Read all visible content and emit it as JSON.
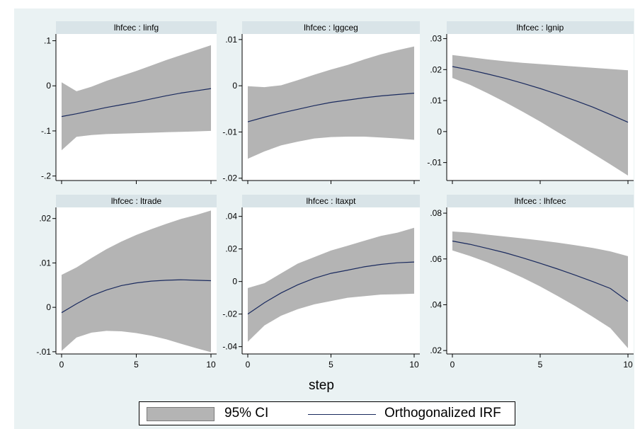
{
  "chart": {
    "xlabel": "step",
    "legend": [
      {
        "label": "95% CI"
      },
      {
        "label": "Orthogonalized IRF"
      }
    ]
  },
  "colors": {
    "ci_fill": "#b4b4b4",
    "irf_line": "#1a2a5e",
    "panel_title_bg": "#d9e4e8",
    "outer_background": "#eaf2f3",
    "plot_background": "#ffffff"
  },
  "chart_data": [
    {
      "type": "line",
      "title": "lhfcec : linfg",
      "xlabel": "step",
      "x": [
        0,
        1,
        2,
        3,
        4,
        5,
        6,
        7,
        8,
        9,
        10
      ],
      "xticks": [
        0,
        5,
        10
      ],
      "ylim": [
        -0.21,
        0.115
      ],
      "yticks": [
        ".1",
        "0",
        "-.1",
        "-.2"
      ],
      "ytick_values": [
        0.1,
        0,
        -0.1,
        -0.2
      ],
      "series": [
        {
          "name": "Orthogonalized IRF",
          "values": [
            -0.068,
            -0.062,
            -0.055,
            -0.048,
            -0.042,
            -0.036,
            -0.029,
            -0.022,
            -0.016,
            -0.011,
            -0.006
          ]
        },
        {
          "name": "95% CI lower",
          "values": [
            -0.143,
            -0.113,
            -0.109,
            -0.107,
            -0.106,
            -0.105,
            -0.104,
            -0.103,
            -0.102,
            -0.101,
            -0.1
          ]
        },
        {
          "name": "95% CI upper",
          "values": [
            0.008,
            -0.012,
            -0.002,
            0.011,
            0.022,
            0.033,
            0.045,
            0.057,
            0.068,
            0.079,
            0.09
          ]
        }
      ]
    },
    {
      "type": "line",
      "title": "lhfcec : lggceg",
      "xlabel": "step",
      "x": [
        0,
        1,
        2,
        3,
        4,
        5,
        6,
        7,
        8,
        9,
        10
      ],
      "xticks": [
        0,
        5,
        10
      ],
      "ylim": [
        -0.0205,
        0.0112
      ],
      "yticks": [
        ".01",
        "0",
        "-.01",
        "-.02"
      ],
      "ytick_values": [
        0.01,
        0,
        -0.01,
        -0.02
      ],
      "series": [
        {
          "name": "Orthogonalized IRF",
          "values": [
            -0.0078,
            -0.0068,
            -0.0059,
            -0.0051,
            -0.0043,
            -0.0036,
            -0.0031,
            -0.0026,
            -0.0022,
            -0.0019,
            -0.0016
          ]
        },
        {
          "name": "95% CI lower",
          "values": [
            -0.0158,
            -0.0142,
            -0.0129,
            -0.0121,
            -0.0114,
            -0.0111,
            -0.011,
            -0.011,
            -0.0112,
            -0.0114,
            -0.0117
          ]
        },
        {
          "name": "95% CI upper",
          "values": [
            -0.0001,
            -0.0003,
            0.0001,
            0.0012,
            0.0024,
            0.0035,
            0.0045,
            0.0057,
            0.0068,
            0.0077,
            0.0085
          ]
        }
      ]
    },
    {
      "type": "line",
      "title": "lhfcec : lgnip",
      "xlabel": "step",
      "x": [
        0,
        1,
        2,
        3,
        4,
        5,
        6,
        7,
        8,
        9,
        10
      ],
      "xticks": [
        0,
        5,
        10
      ],
      "ylim": [
        -0.0158,
        0.0315
      ],
      "yticks": [
        ".03",
        ".02",
        ".01",
        "0",
        "-.01"
      ],
      "ytick_values": [
        0.03,
        0.02,
        0.01,
        0,
        -0.01
      ],
      "series": [
        {
          "name": "Orthogonalized IRF",
          "values": [
            0.021,
            0.0199,
            0.0186,
            0.0172,
            0.0156,
            0.0139,
            0.012,
            0.01,
            0.0079,
            0.0055,
            0.003
          ]
        },
        {
          "name": "95% CI lower",
          "values": [
            0.0173,
            0.0151,
            0.0124,
            0.0095,
            0.0064,
            0.0032,
            -0.0002,
            -0.0036,
            -0.0071,
            -0.0106,
            -0.0142
          ]
        },
        {
          "name": "95% CI upper",
          "values": [
            0.0247,
            0.024,
            0.0233,
            0.0227,
            0.0222,
            0.0218,
            0.0214,
            0.021,
            0.0206,
            0.0202,
            0.0198
          ]
        }
      ]
    },
    {
      "type": "line",
      "title": "lhfcec : ltrade",
      "xlabel": "step",
      "x": [
        0,
        1,
        2,
        3,
        4,
        5,
        6,
        7,
        8,
        9,
        10
      ],
      "xticks": [
        0,
        5,
        10
      ],
      "ylim": [
        -0.0105,
        0.0225
      ],
      "yticks": [
        ".02",
        ".01",
        "0",
        "-.01"
      ],
      "ytick_values": [
        0.02,
        0.01,
        0,
        -0.01
      ],
      "series": [
        {
          "name": "Orthogonalized IRF",
          "values": [
            -0.0012,
            0.0008,
            0.0026,
            0.0039,
            0.0049,
            0.0055,
            0.0059,
            0.0061,
            0.0062,
            0.0061,
            0.006
          ]
        },
        {
          "name": "95% CI lower",
          "values": [
            -0.0098,
            -0.0068,
            -0.0057,
            -0.0053,
            -0.0054,
            -0.0058,
            -0.0064,
            -0.0072,
            -0.0082,
            -0.0092,
            -0.0101
          ]
        },
        {
          "name": "95% CI upper",
          "values": [
            0.0073,
            0.009,
            0.0111,
            0.0131,
            0.0148,
            0.0163,
            0.0176,
            0.0188,
            0.0199,
            0.0208,
            0.0218
          ]
        }
      ]
    },
    {
      "type": "line",
      "title": "lhfcec : ltaxpt",
      "xlabel": "step",
      "x": [
        0,
        1,
        2,
        3,
        4,
        5,
        6,
        7,
        8,
        9,
        10
      ],
      "xticks": [
        0,
        5,
        10
      ],
      "ylim": [
        -0.0445,
        0.0455
      ],
      "yticks": [
        ".04",
        ".02",
        "0",
        "-.02",
        "-.04"
      ],
      "ytick_values": [
        0.04,
        0.02,
        0,
        -0.02,
        -0.04
      ],
      "series": [
        {
          "name": "Orthogonalized IRF",
          "values": [
            -0.02,
            -0.013,
            -0.007,
            -0.002,
            0.002,
            0.005,
            0.007,
            0.009,
            0.0105,
            0.0115,
            0.012
          ]
        },
        {
          "name": "95% CI lower",
          "values": [
            -0.037,
            -0.027,
            -0.021,
            -0.017,
            -0.014,
            -0.012,
            -0.01,
            -0.009,
            -0.008,
            -0.0078,
            -0.0075
          ]
        },
        {
          "name": "95% CI upper",
          "values": [
            -0.004,
            -0.001,
            0.005,
            0.011,
            0.015,
            0.019,
            0.022,
            0.025,
            0.028,
            0.03,
            0.033
          ]
        }
      ]
    },
    {
      "type": "line",
      "title": "lhfcec : lhfcec",
      "xlabel": "step",
      "x": [
        0,
        1,
        2,
        3,
        4,
        5,
        6,
        7,
        8,
        9,
        10
      ],
      "xticks": [
        0,
        5,
        10
      ],
      "ylim": [
        0.0185,
        0.0825
      ],
      "yticks": [
        ".08",
        ".06",
        ".04",
        ".02"
      ],
      "ytick_values": [
        0.08,
        0.06,
        0.04,
        0.02
      ],
      "series": [
        {
          "name": "Orthogonalized IRF",
          "values": [
            0.0678,
            0.0664,
            0.0646,
            0.0627,
            0.0605,
            0.0581,
            0.0556,
            0.0529,
            0.0501,
            0.0471,
            0.0415
          ]
        },
        {
          "name": "95% CI lower",
          "values": [
            0.0637,
            0.0613,
            0.0585,
            0.0553,
            0.0518,
            0.048,
            0.0438,
            0.0394,
            0.0347,
            0.0298,
            0.021
          ]
        },
        {
          "name": "95% CI upper",
          "values": [
            0.072,
            0.0715,
            0.0706,
            0.0698,
            0.069,
            0.0681,
            0.0671,
            0.066,
            0.0648,
            0.0633,
            0.0612
          ]
        }
      ]
    }
  ]
}
